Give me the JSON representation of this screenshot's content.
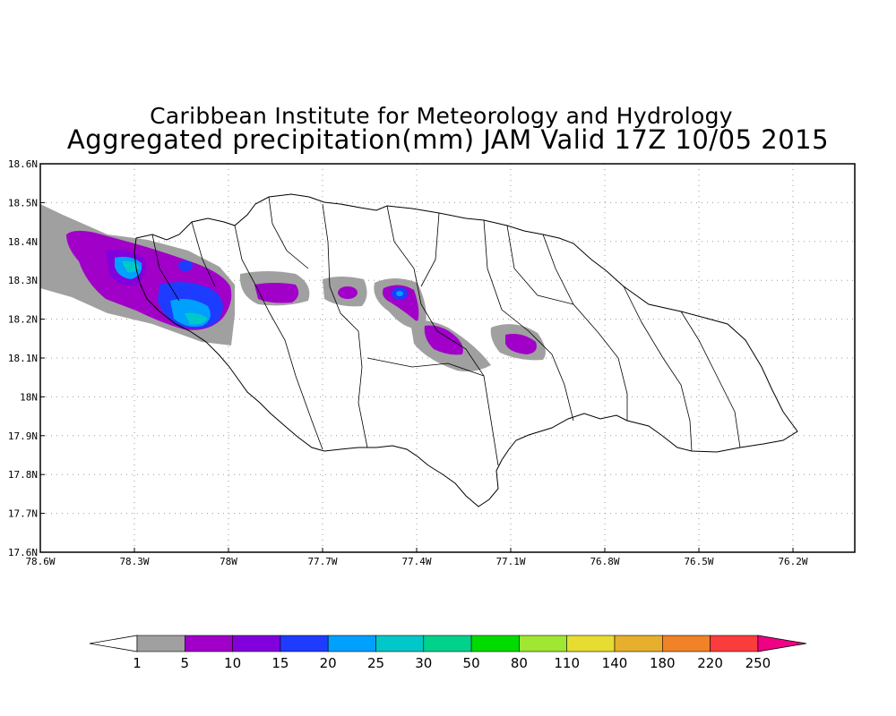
{
  "header": {
    "institute": "Caribbean Institute for Meteorology and Hydrology",
    "product": "Aggregated precipitation(mm) JAM Valid 17Z 10/05 2015"
  },
  "map_data": {
    "type": "filled-contour-map",
    "region": "Jamaica",
    "lon_range": [
      -78.6,
      -76.0
    ],
    "lat_range": [
      17.6,
      18.6
    ],
    "lon_ticks": [
      {
        "value": -78.6,
        "label": "78.6W"
      },
      {
        "value": -78.3,
        "label": "78.3W"
      },
      {
        "value": -78.0,
        "label": "78W"
      },
      {
        "value": -77.7,
        "label": "77.7W"
      },
      {
        "value": -77.4,
        "label": "77.4W"
      },
      {
        "value": -77.1,
        "label": "77.1W"
      },
      {
        "value": -76.8,
        "label": "76.8W"
      },
      {
        "value": -76.5,
        "label": "76.5W"
      },
      {
        "value": -76.2,
        "label": "76.2W"
      }
    ],
    "lat_ticks": [
      {
        "value": 18.6,
        "label": "18.6N"
      },
      {
        "value": 18.5,
        "label": "18.5N"
      },
      {
        "value": 18.4,
        "label": "18.4N"
      },
      {
        "value": 18.3,
        "label": "18.3N"
      },
      {
        "value": 18.2,
        "label": "18.2N"
      },
      {
        "value": 18.1,
        "label": "18.1N"
      },
      {
        "value": 18.0,
        "label": "18N"
      },
      {
        "value": 17.9,
        "label": "17.9N"
      },
      {
        "value": 17.8,
        "label": "17.8N"
      },
      {
        "value": 17.7,
        "label": "17.7N"
      },
      {
        "value": 17.6,
        "label": "17.6N"
      }
    ],
    "grid": true,
    "precip_cells": [
      {
        "lon": -78.32,
        "lat": 18.33,
        "level": "25-30"
      },
      {
        "lon": -78.13,
        "lat": 18.22,
        "level": "20-25"
      },
      {
        "lon": -77.42,
        "lat": 18.27,
        "level": "15-20"
      },
      {
        "lon": -77.37,
        "lat": 18.15,
        "level": "5-10"
      },
      {
        "lon": -77.07,
        "lat": 18.14,
        "level": "5-10"
      },
      {
        "lon": -77.78,
        "lat": 18.28,
        "level": "5-10"
      },
      {
        "lon": -77.57,
        "lat": 18.28,
        "level": "5-10"
      }
    ]
  },
  "legend": {
    "levels": [
      "1",
      "5",
      "10",
      "15",
      "20",
      "25",
      "30",
      "50",
      "80",
      "110",
      "140",
      "180",
      "220",
      "250"
    ],
    "colors": [
      "#a0a0a0",
      "#a000c8",
      "#8200dc",
      "#1e3cff",
      "#00a0ff",
      "#00c8c8",
      "#00d28c",
      "#00dc00",
      "#a0e632",
      "#e6dc32",
      "#e6af2d",
      "#f08228",
      "#fa3c3c",
      "#f00082"
    ],
    "under_color": "#ffffff",
    "over_color": "#f00082"
  }
}
